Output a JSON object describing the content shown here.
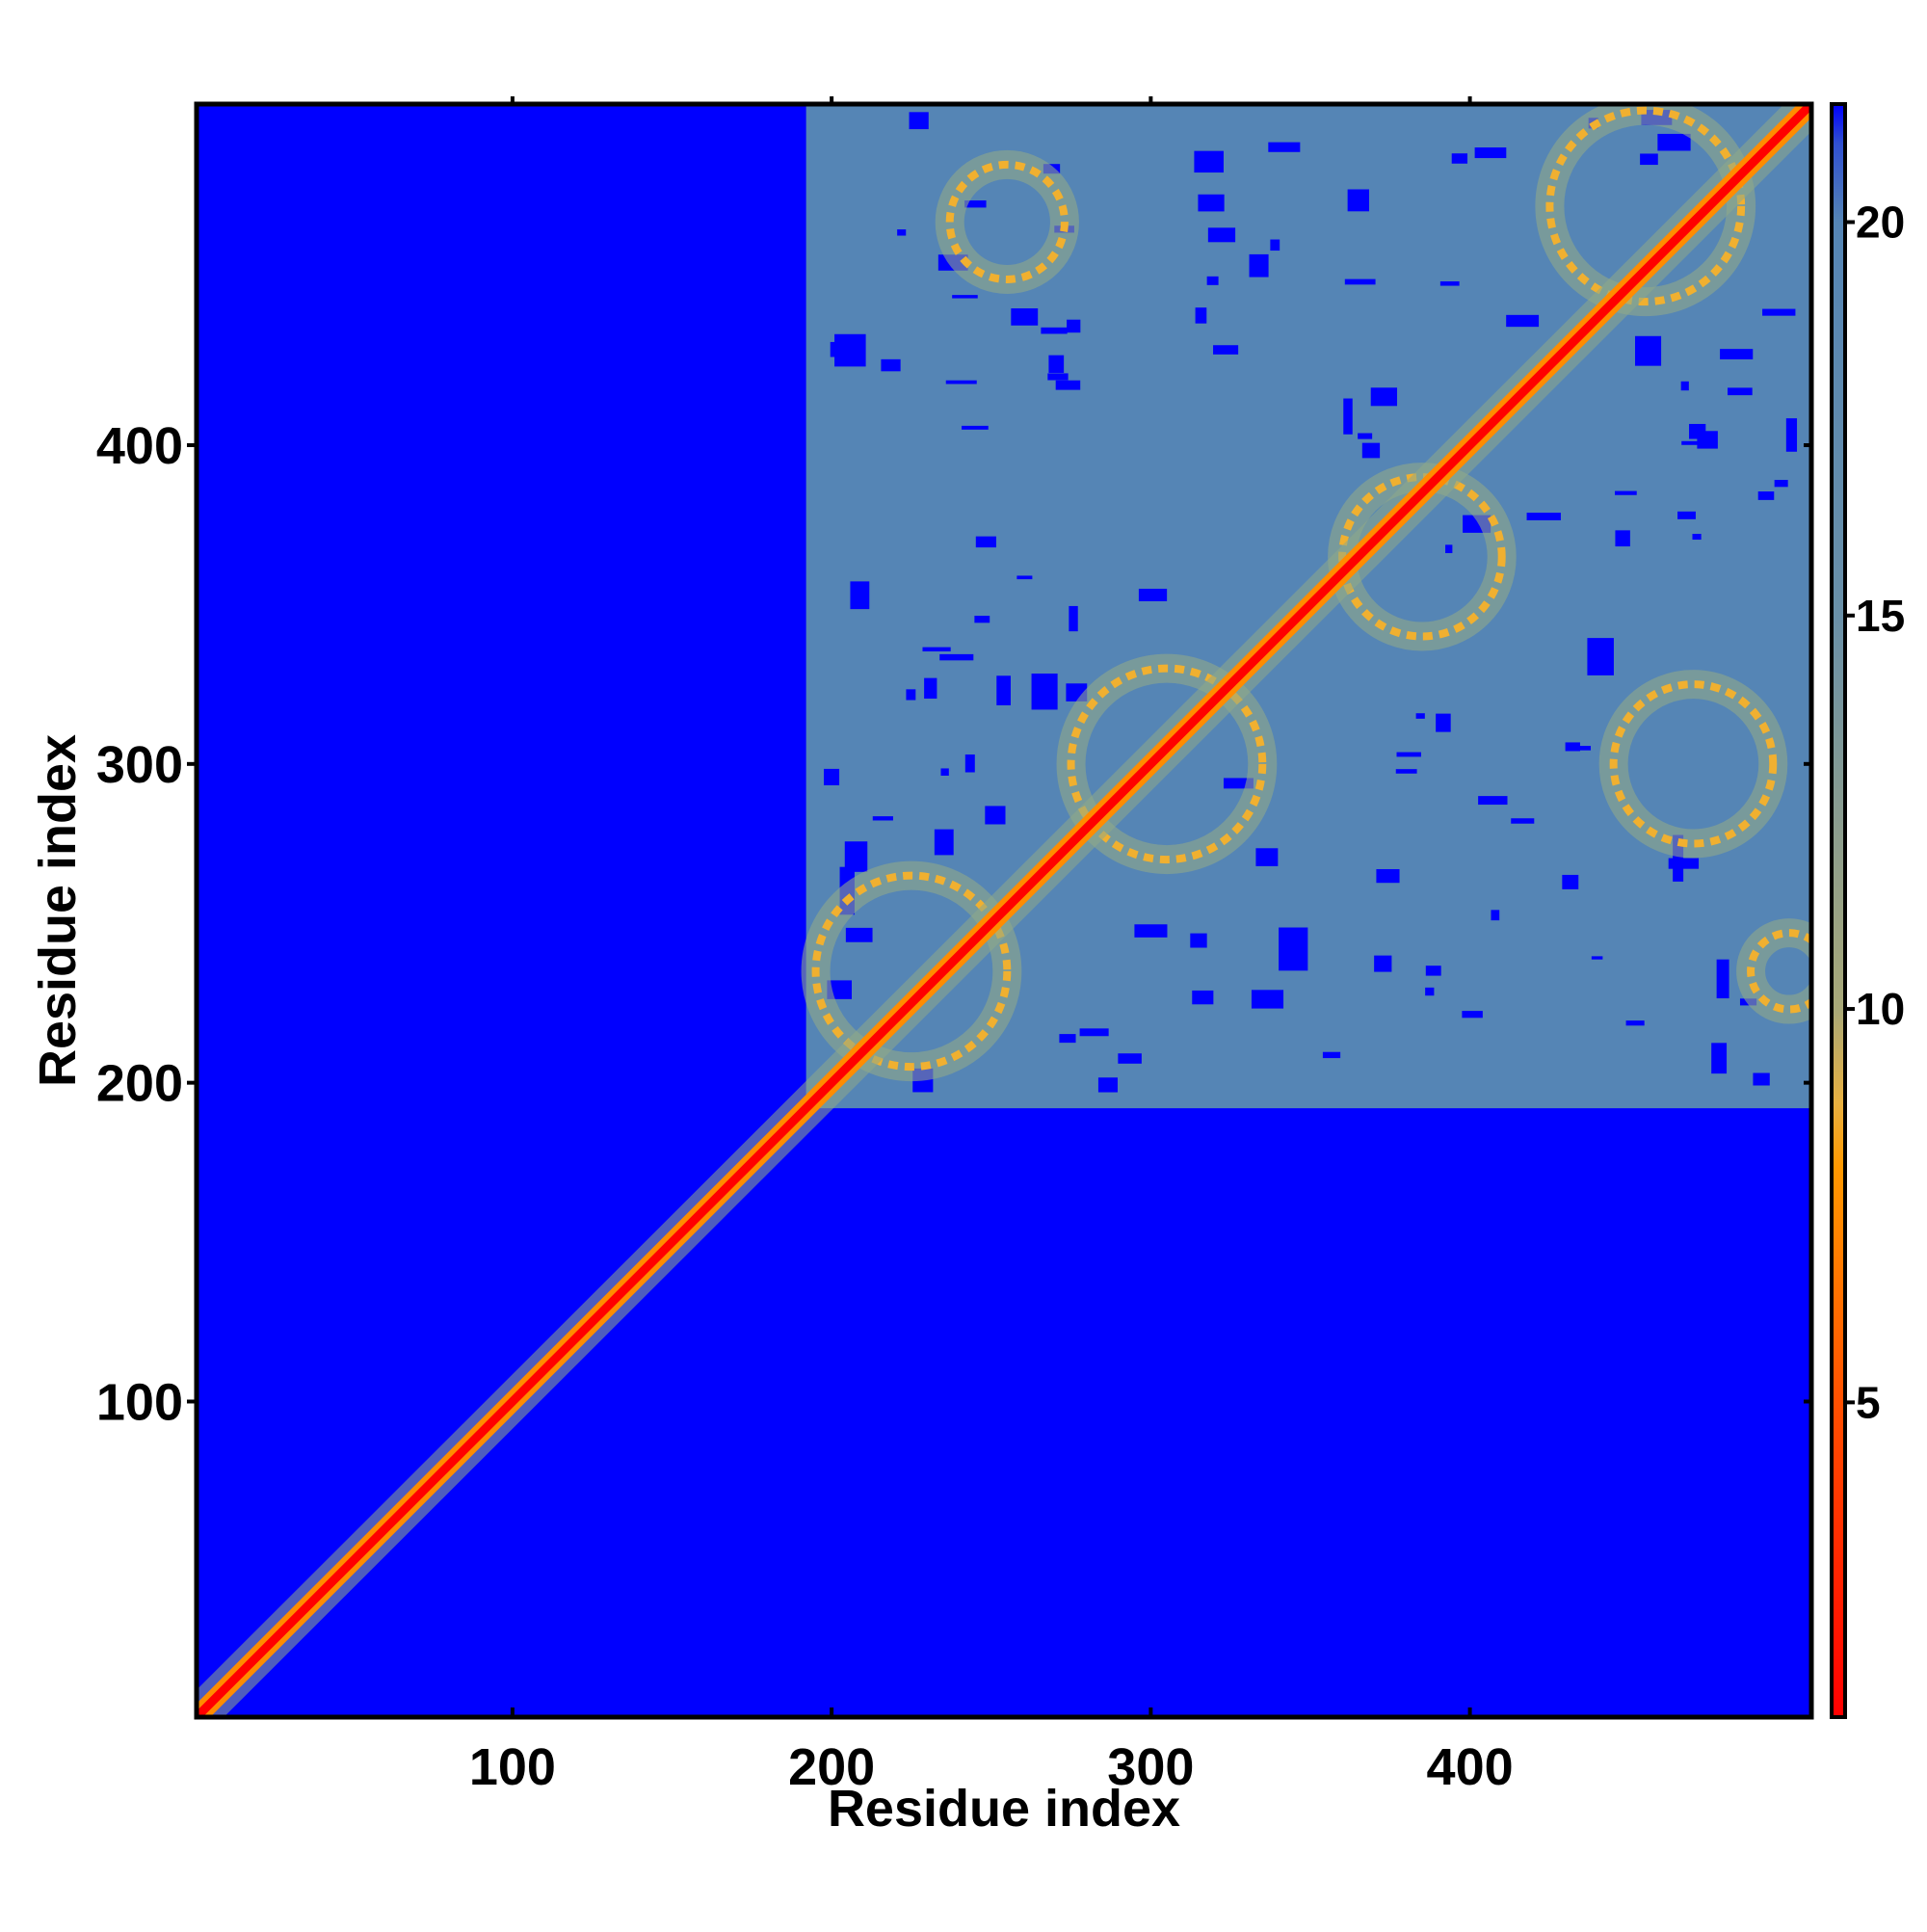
{
  "chart_data": {
    "type": "heatmap",
    "title": "",
    "xlabel": "Residue index",
    "ylabel": "Residue index",
    "xlim": [
      1,
      507
    ],
    "ylim": [
      1,
      507
    ],
    "x_ticks": [
      100,
      200,
      300,
      400
    ],
    "y_ticks": [
      100,
      200,
      300,
      400
    ],
    "colorbar": {
      "range": [
        1,
        21.5
      ],
      "ticks": [
        5,
        10,
        15,
        20
      ],
      "colors": {
        "low": "#ff0000",
        "mid_low": "#ff8c00",
        "mid": "#f0b030",
        "mid_high": "#8fa98a",
        "high": "#5585b5",
        "max": "#0000ff"
      },
      "stops": [
        {
          "value": 1,
          "color": "#ff0000"
        },
        {
          "value": 5,
          "color": "#ff5000"
        },
        {
          "value": 8,
          "color": "#ff9900"
        },
        {
          "value": 8.8,
          "color": "#e8b040"
        },
        {
          "value": 10,
          "color": "#a8a878"
        },
        {
          "value": 15,
          "color": "#6a90a8"
        },
        {
          "value": 20,
          "color": "#5585b5"
        },
        {
          "value": 21,
          "color": "#3050d0"
        },
        {
          "value": 21.5,
          "color": "#0000ff"
        }
      ]
    },
    "background_value_color": "#0000ff",
    "contact_region": {
      "from_residue": 192,
      "to_residue": 507
    },
    "diagonal_color": "#ff0000",
    "contact_loops": [
      {
        "cx": 225,
        "cy": 235,
        "r": 30
      },
      {
        "cx": 305,
        "cy": 300,
        "r": 30
      },
      {
        "cx": 385,
        "cy": 365,
        "r": 25
      },
      {
        "cx": 455,
        "cy": 475,
        "r": 30
      },
      {
        "cx": 470,
        "cy": 300,
        "r": 25
      },
      {
        "cx": 255,
        "cy": 470,
        "r": 18
      },
      {
        "cx": 500,
        "cy": 235,
        "r": 12
      }
    ]
  }
}
